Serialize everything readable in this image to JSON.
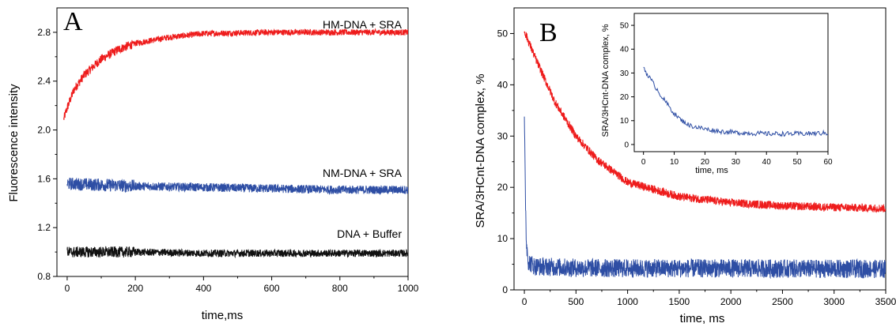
{
  "chart_data": [
    {
      "type": "line",
      "panel_label": "A",
      "xlabel": "time,ms",
      "ylabel": "Fluorescence intensity",
      "xlim": [
        -30,
        1000
      ],
      "ylim": [
        0.8,
        3.0
      ],
      "xticks": [
        0,
        200,
        400,
        600,
        800,
        1000
      ],
      "yticks": [
        0.8,
        1.2,
        1.6,
        2.0,
        2.4,
        2.8
      ],
      "xtick_labels": [
        "0",
        "200",
        "400",
        "600",
        "800",
        "1000"
      ],
      "ytick_labels": [
        "0.8",
        "1.2",
        "1.6",
        "2.0",
        "2.4",
        "2.8"
      ],
      "grid": false,
      "series": [
        {
          "name": "HM-DNA + SRA",
          "color": "#ee1c1c",
          "x": [
            -10,
            0,
            20,
            50,
            100,
            150,
            200,
            300,
            400,
            600,
            800,
            1000
          ],
          "y": [
            2.09,
            2.18,
            2.33,
            2.45,
            2.58,
            2.66,
            2.71,
            2.76,
            2.79,
            2.8,
            2.8,
            2.8
          ],
          "noise": 0.025
        },
        {
          "name": "NM-DNA + SRA",
          "color": "#2e4ea4",
          "x": [
            0,
            200,
            400,
            600,
            800,
            1000
          ],
          "y": [
            1.56,
            1.54,
            1.53,
            1.52,
            1.51,
            1.51
          ],
          "noise": 0.035
        },
        {
          "name": "DNA + Buffer",
          "color": "#111111",
          "x": [
            0,
            200,
            400,
            600,
            800,
            1000
          ],
          "y": [
            1.0,
            1.0,
            0.99,
            0.99,
            0.99,
            0.99
          ],
          "noise": 0.03
        }
      ],
      "annotations": [
        "HM-DNA + SRA",
        "NM-DNA + SRA",
        "DNA + Buffer"
      ]
    },
    {
      "type": "line",
      "panel_label": "B",
      "xlabel": "time, ms",
      "ylabel": "SRA/3HCnt-DNA complex, %",
      "xlim": [
        -100,
        3500
      ],
      "ylim": [
        0,
        55
      ],
      "xticks": [
        0,
        500,
        1000,
        1500,
        2000,
        2500,
        3000,
        3500
      ],
      "yticks": [
        0,
        10,
        20,
        30,
        40,
        50
      ],
      "xtick_labels": [
        "0",
        "500",
        "1000",
        "1500",
        "2000",
        "2500",
        "3000",
        "3500"
      ],
      "ytick_labels": [
        "0",
        "10",
        "20",
        "30",
        "40",
        "50"
      ],
      "grid": false,
      "series": [
        {
          "color": "#ee1c1c",
          "x": [
            0,
            100,
            200,
            300,
            500,
            700,
            1000,
            1500,
            2000,
            2500,
            3000,
            3500
          ],
          "y": [
            50.5,
            45.5,
            41,
            36.5,
            30,
            25.5,
            21,
            18.2,
            17,
            16.4,
            16.1,
            15.9
          ],
          "noise": 0.8
        },
        {
          "color": "#2e4ea4",
          "x": [
            0,
            5,
            10,
            20,
            40,
            100,
            500,
            1000,
            2000,
            3000,
            3500
          ],
          "y": [
            33,
            26,
            18,
            9,
            5.5,
            4.6,
            4.3,
            4.2,
            4.2,
            4.1,
            4.1
          ],
          "noise": 1.8
        }
      ],
      "inset": {
        "xlabel": "time, ms",
        "ylabel": "SRA/3HCnt-DNA complex, %",
        "xlim": [
          -3,
          60
        ],
        "ylim": [
          -3,
          55
        ],
        "xticks": [
          0,
          10,
          20,
          30,
          40,
          50,
          60
        ],
        "yticks": [
          0,
          10,
          20,
          30,
          40,
          50
        ],
        "xtick_labels": [
          "0",
          "10",
          "20",
          "30",
          "40",
          "50",
          "60"
        ],
        "ytick_labels": [
          "0",
          "10",
          "20",
          "30",
          "40",
          "50"
        ],
        "series": [
          {
            "color": "#2e4ea4",
            "x": [
              0,
              1,
              2,
              4,
              6,
              8,
              10,
              12,
              15,
              20,
              25,
              30,
              40,
              50,
              60
            ],
            "y": [
              32.5,
              30,
              28,
              24,
              20,
              16.5,
              13,
              10.5,
              8,
              6.5,
              5.5,
              5,
              4.5,
              4.5,
              4.8
            ],
            "noise": 1.0
          }
        ]
      }
    }
  ]
}
